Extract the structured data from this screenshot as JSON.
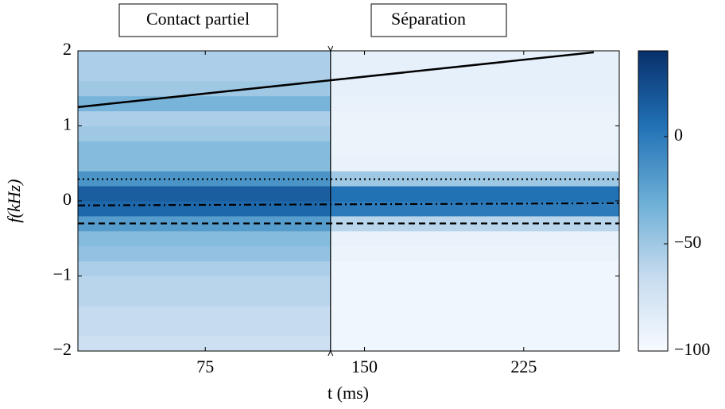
{
  "chart_data": {
    "type": "heatmap",
    "annotations": [
      "Contact partiel",
      "Séparation"
    ],
    "xlabel": "t (ms)",
    "ylabel": "f(kHz)",
    "xlim": [
      15,
      270
    ],
    "ylim": [
      -2,
      2
    ],
    "xticks": [
      75,
      150,
      225
    ],
    "yticks": [
      {
        "value": -2,
        "label": "−2"
      },
      {
        "value": -1,
        "label": "−1"
      },
      0,
      1,
      2
    ],
    "x_bins": [
      15,
      134,
      270
    ],
    "y_bins": [
      -2,
      -1.8,
      -1.6,
      -1.4,
      -1.2,
      -1,
      -0.8,
      -0.6,
      -0.4,
      -0.2,
      0,
      0.2,
      0.4,
      0.6,
      0.8,
      1,
      1.2,
      1.4,
      1.6,
      1.8,
      2
    ],
    "z": [
      [
        -70,
        -95
      ],
      [
        -65,
        -95
      ],
      [
        -65,
        -95
      ],
      [
        -60,
        -95
      ],
      [
        -60,
        -95
      ],
      [
        -55,
        -95
      ],
      [
        -45,
        -92
      ],
      [
        -40,
        -90
      ],
      [
        -20,
        -60
      ],
      [
        10,
        0
      ],
      [
        15,
        5
      ],
      [
        -15,
        -50
      ],
      [
        -40,
        -90
      ],
      [
        -40,
        -92
      ],
      [
        -50,
        -92
      ],
      [
        -55,
        -92
      ],
      [
        -35,
        -90
      ],
      [
        -50,
        -88
      ],
      [
        -55,
        -88
      ],
      [
        -55,
        -88
      ]
    ],
    "clim": [
      -100,
      40
    ],
    "cticks": [
      {
        "value": -100,
        "label": "−100"
      },
      {
        "value": -50,
        "label": "−50"
      },
      0
    ],
    "colormap": [
      "#f7fbff",
      "#c6dbef",
      "#6baed6",
      "#2171b5",
      "#08306b"
    ],
    "vline": 134,
    "lines": [
      {
        "x": [
          15,
          258
        ],
        "y": [
          1.25,
          1.98
        ],
        "style": "solid"
      },
      {
        "x": [
          15,
          270
        ],
        "y": [
          0.29,
          0.29
        ],
        "style": "dotted"
      },
      {
        "x": [
          15,
          270
        ],
        "y": [
          -0.06,
          -0.03
        ],
        "style": "dashdot"
      },
      {
        "x": [
          15,
          270
        ],
        "y": [
          -0.3,
          -0.3
        ],
        "style": "dashed"
      }
    ]
  }
}
